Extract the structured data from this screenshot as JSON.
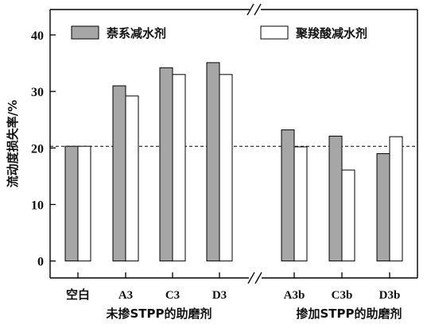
{
  "chart_data": {
    "type": "bar",
    "ylabel": "流动度损失率/%",
    "ylim": [
      -3,
      44.5
    ],
    "yticks": [
      0,
      10,
      20,
      30,
      40
    ],
    "reference_line": 20.3,
    "grid": false,
    "legend_position": "top",
    "categories": [
      "空白",
      "A3",
      "C3",
      "D3",
      "A3b",
      "C3b",
      "D3b"
    ],
    "groups": [
      {
        "label": "未掺STPP的助磨剂",
        "categories": [
          "空白",
          "A3",
          "C3",
          "D3"
        ]
      },
      {
        "label": "掺加STPP的助磨剂",
        "categories": [
          "A3b",
          "C3b",
          "D3b"
        ]
      }
    ],
    "series": [
      {
        "name": "萘系减水剂",
        "color": "#a6a6a6",
        "values": [
          20.3,
          31,
          34.2,
          35.1,
          23.2,
          22.1,
          19
        ]
      },
      {
        "name": "聚羧酸减水剂",
        "color": "#ffffff",
        "values": [
          20.3,
          29.2,
          33,
          33,
          20.2,
          16.1,
          22
        ]
      }
    ]
  }
}
